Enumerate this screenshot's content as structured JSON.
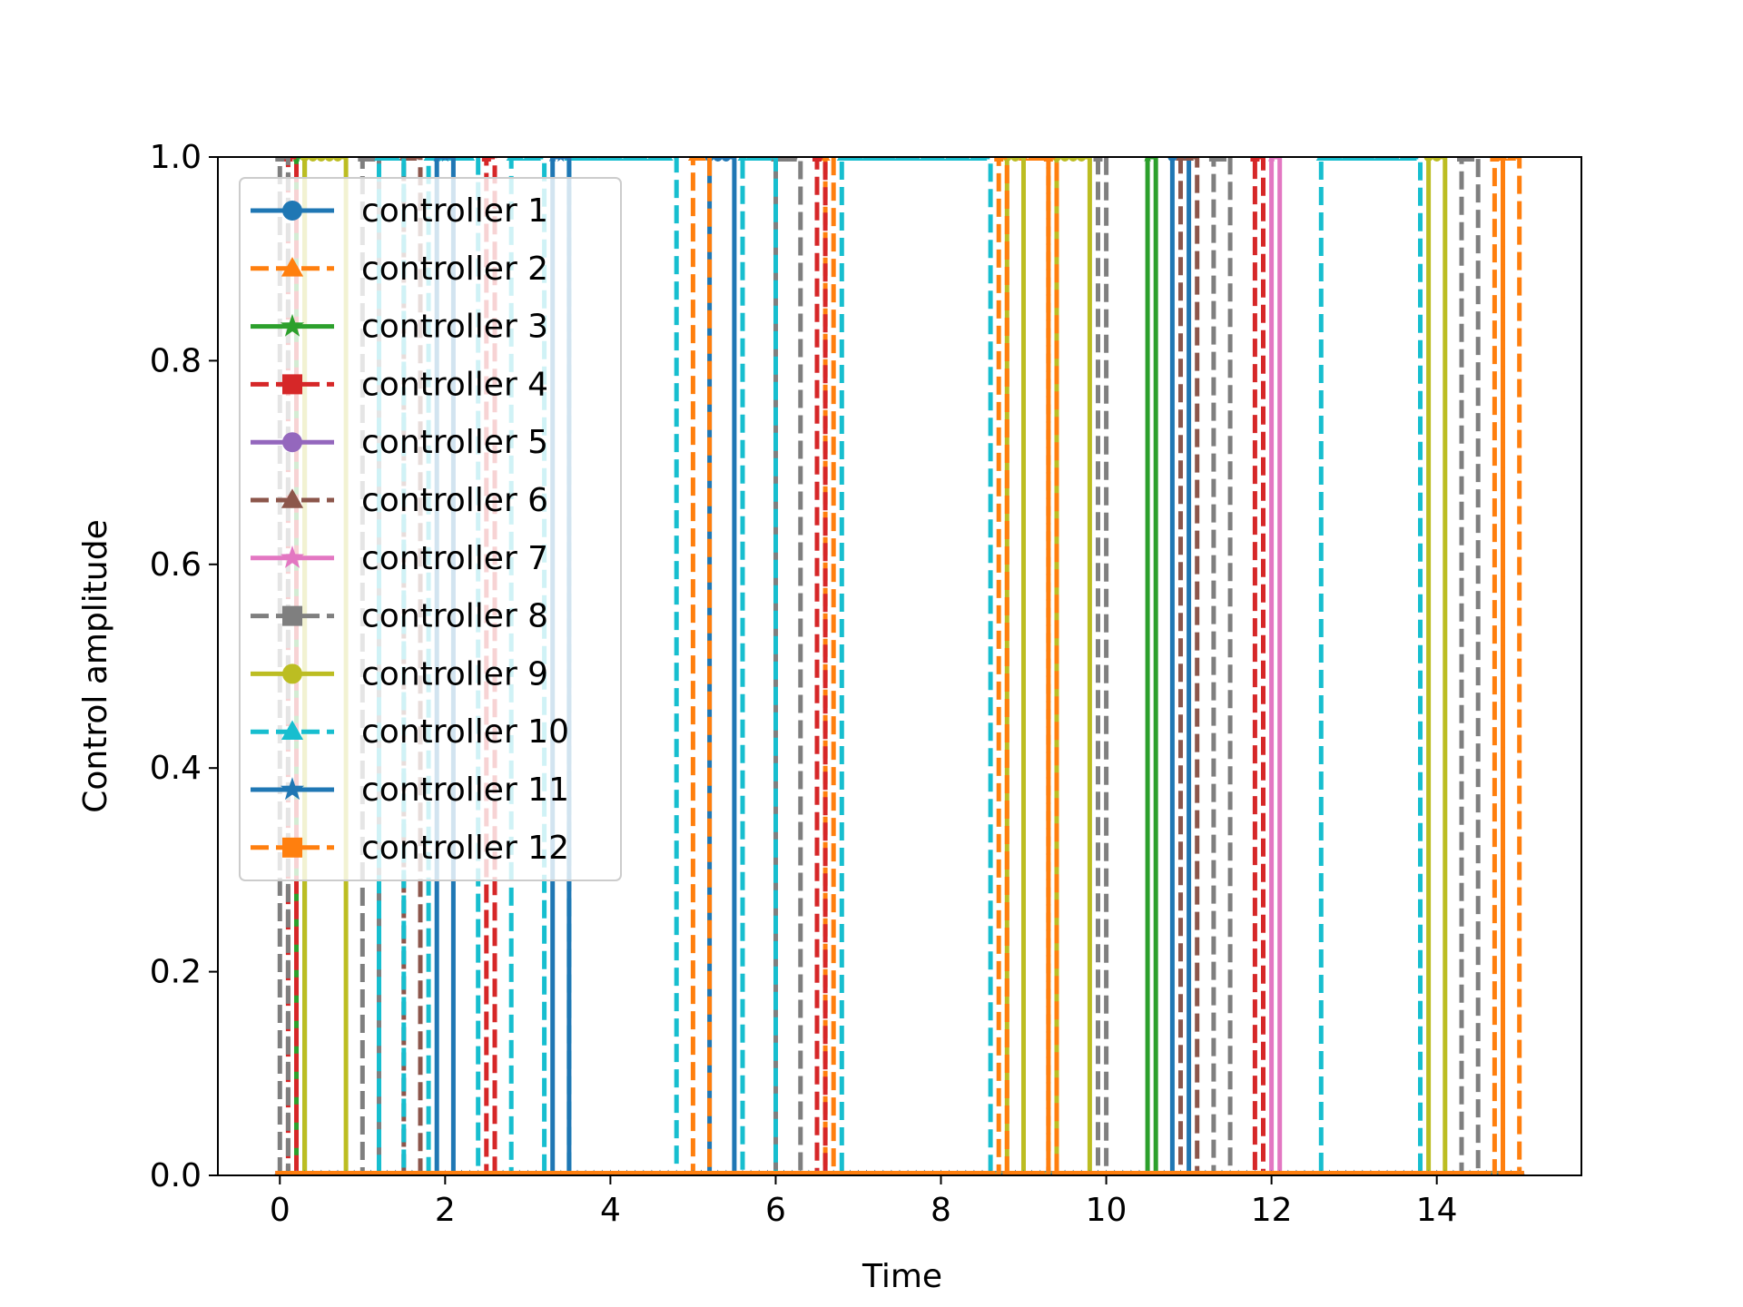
{
  "chart_data": {
    "type": "line",
    "title": "",
    "xlabel": "Time",
    "ylabel": "Control amplitude",
    "xlim": [
      -0.75,
      15.75
    ],
    "ylim": [
      0.0,
      1.0
    ],
    "xticks": [
      0,
      2,
      4,
      6,
      8,
      10,
      12,
      14
    ],
    "xtick_labels": [
      "0",
      "2",
      "4",
      "6",
      "8",
      "10",
      "12",
      "14"
    ],
    "yticks": [
      0.0,
      0.2,
      0.4,
      0.6,
      0.8,
      1.0
    ],
    "ytick_labels": [
      "0.0",
      "0.2",
      "0.4",
      "0.6",
      "0.8",
      "1.0"
    ],
    "grid": false,
    "legend_position": "upper-left",
    "step_duration": 0.1,
    "series": [
      {
        "name": "controller 1",
        "color": "#1f77b4",
        "marker": "circle",
        "dash": "solid",
        "on_intervals": [
          [
            5.2,
            5.5
          ],
          [
            10.8,
            11.0
          ]
        ]
      },
      {
        "name": "controller 2",
        "color": "#ff7f0e",
        "marker": "triangle",
        "dash": "dashed",
        "on_intervals": [
          [
            5.0,
            5.2
          ],
          [
            6.6,
            6.7
          ],
          [
            9.0,
            9.3
          ],
          [
            14.8,
            15.0
          ]
        ]
      },
      {
        "name": "controller 3",
        "color": "#2ca02c",
        "marker": "star",
        "dash": "solid",
        "on_intervals": [
          [
            0.2,
            0.3
          ],
          [
            10.5,
            10.6
          ]
        ]
      },
      {
        "name": "controller 4",
        "color": "#d62728",
        "marker": "square",
        "dash": "dashed",
        "on_intervals": [
          [
            0.1,
            0.2
          ],
          [
            2.5,
            2.6
          ],
          [
            6.5,
            6.6
          ],
          [
            11.8,
            11.9
          ]
        ]
      },
      {
        "name": "controller 5",
        "color": "#9467bd",
        "marker": "circle",
        "dash": "solid",
        "on_intervals": []
      },
      {
        "name": "controller 6",
        "color": "#8c564b",
        "marker": "triangle",
        "dash": "dashed",
        "on_intervals": [
          [
            1.5,
            1.7
          ],
          [
            10.9,
            11.1
          ]
        ]
      },
      {
        "name": "controller 7",
        "color": "#e377c2",
        "marker": "star",
        "dash": "solid",
        "on_intervals": [
          [
            12.0,
            12.1
          ]
        ]
      },
      {
        "name": "controller 8",
        "color": "#7f7f7f",
        "marker": "square",
        "dash": "dashed",
        "on_intervals": [
          [
            0.0,
            0.1
          ],
          [
            1.0,
            1.2
          ],
          [
            6.0,
            6.3
          ],
          [
            9.9,
            10.0
          ],
          [
            11.3,
            11.5
          ],
          [
            14.3,
            14.5
          ]
        ]
      },
      {
        "name": "controller 9",
        "color": "#bcbd22",
        "marker": "circle",
        "dash": "solid",
        "on_intervals": [
          [
            0.3,
            0.8
          ],
          [
            8.8,
            9.0
          ],
          [
            9.4,
            9.8
          ],
          [
            13.9,
            14.1
          ]
        ]
      },
      {
        "name": "controller 10",
        "color": "#17becf",
        "marker": "triangle",
        "dash": "dashed",
        "on_intervals": [
          [
            1.2,
            1.5
          ],
          [
            1.8,
            2.4
          ],
          [
            2.8,
            3.2
          ],
          [
            3.5,
            4.8
          ],
          [
            5.6,
            6.0
          ],
          [
            6.8,
            8.6
          ],
          [
            12.6,
            13.8
          ]
        ]
      },
      {
        "name": "controller 11",
        "color": "#1f77b4",
        "marker": "star",
        "dash": "solid",
        "on_intervals": [
          [
            1.9,
            2.1
          ],
          [
            3.3,
            3.5
          ]
        ]
      },
      {
        "name": "controller 12",
        "color": "#ff7f0e",
        "marker": "square",
        "dash": "dashed",
        "on_intervals": [
          [
            8.7,
            8.8
          ],
          [
            9.3,
            9.4
          ],
          [
            14.7,
            14.8
          ]
        ]
      }
    ]
  }
}
